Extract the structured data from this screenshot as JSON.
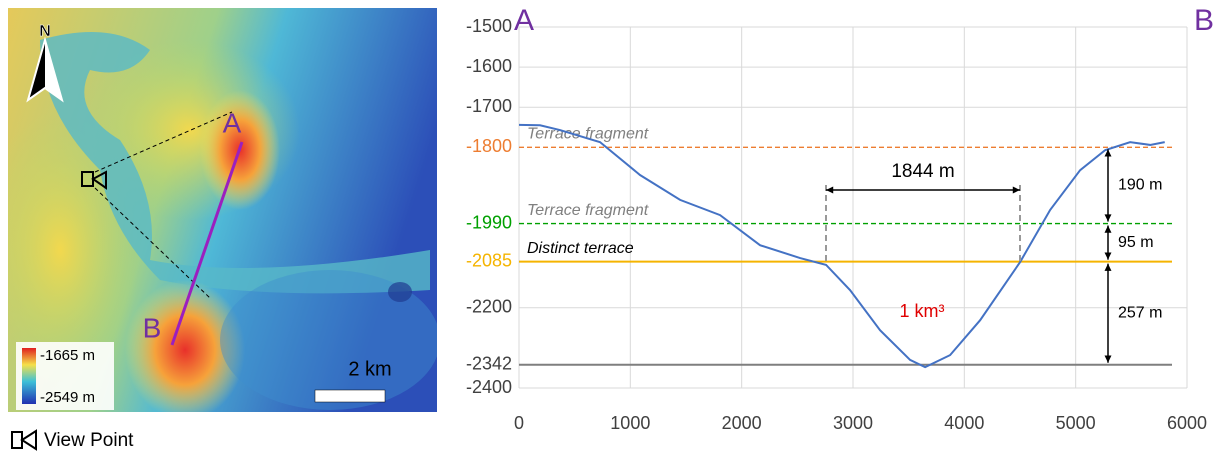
{
  "map": {
    "north": "N",
    "point_a": "A",
    "point_b": "B",
    "legend_max": "-1665 m",
    "legend_min": "-2549 m",
    "scale": "2 km",
    "view_point": "View Point"
  },
  "chart_data": {
    "type": "line",
    "endpoints": [
      "A",
      "B"
    ],
    "x": [
      0,
      189,
      368,
      728,
      1087,
      1447,
      1806,
      2165,
      2525,
      2758,
      2974,
      3243,
      3513,
      3648,
      3872,
      4142,
      4501,
      4771,
      5040,
      5265,
      5489,
      5669,
      5800
    ],
    "values": [
      -1744,
      -1745,
      -1757,
      -1787,
      -1869,
      -1931,
      -1969,
      -2044,
      -2076,
      -2093,
      -2156,
      -2256,
      -2330,
      -2348,
      -2318,
      -2231,
      -2086,
      -1956,
      -1857,
      -1807,
      -1787,
      -1794,
      -1787
    ],
    "color": "#4472c4",
    "xlim": [
      0,
      6000
    ],
    "xticks": [
      0,
      1000,
      2000,
      3000,
      4000,
      5000,
      6000
    ],
    "ylim": [
      -2400,
      -1500
    ],
    "yticks": [
      -1500,
      -1600,
      -1700,
      -1800,
      -1990,
      -2085,
      -2200,
      -2342,
      -2400
    ],
    "grid": true,
    "reference_lines": [
      {
        "value": -1800,
        "color": "#ed7d31",
        "style": "dashed",
        "label": "Terrace fragment",
        "label_color": "#808080"
      },
      {
        "value": -1990,
        "color": "#00a000",
        "style": "dashed",
        "label": "Terrace fragment",
        "label_color": "#808080"
      },
      {
        "value": -2085,
        "color": "#f5b400",
        "style": "solid",
        "label": "Distinct terrace",
        "label_color": "#000000"
      },
      {
        "value": -2342,
        "color": "#7f7f7f",
        "style": "solid"
      }
    ],
    "annotations": [
      "1844 m",
      "190 m",
      "95 m",
      "257 m",
      "1 km³"
    ]
  }
}
